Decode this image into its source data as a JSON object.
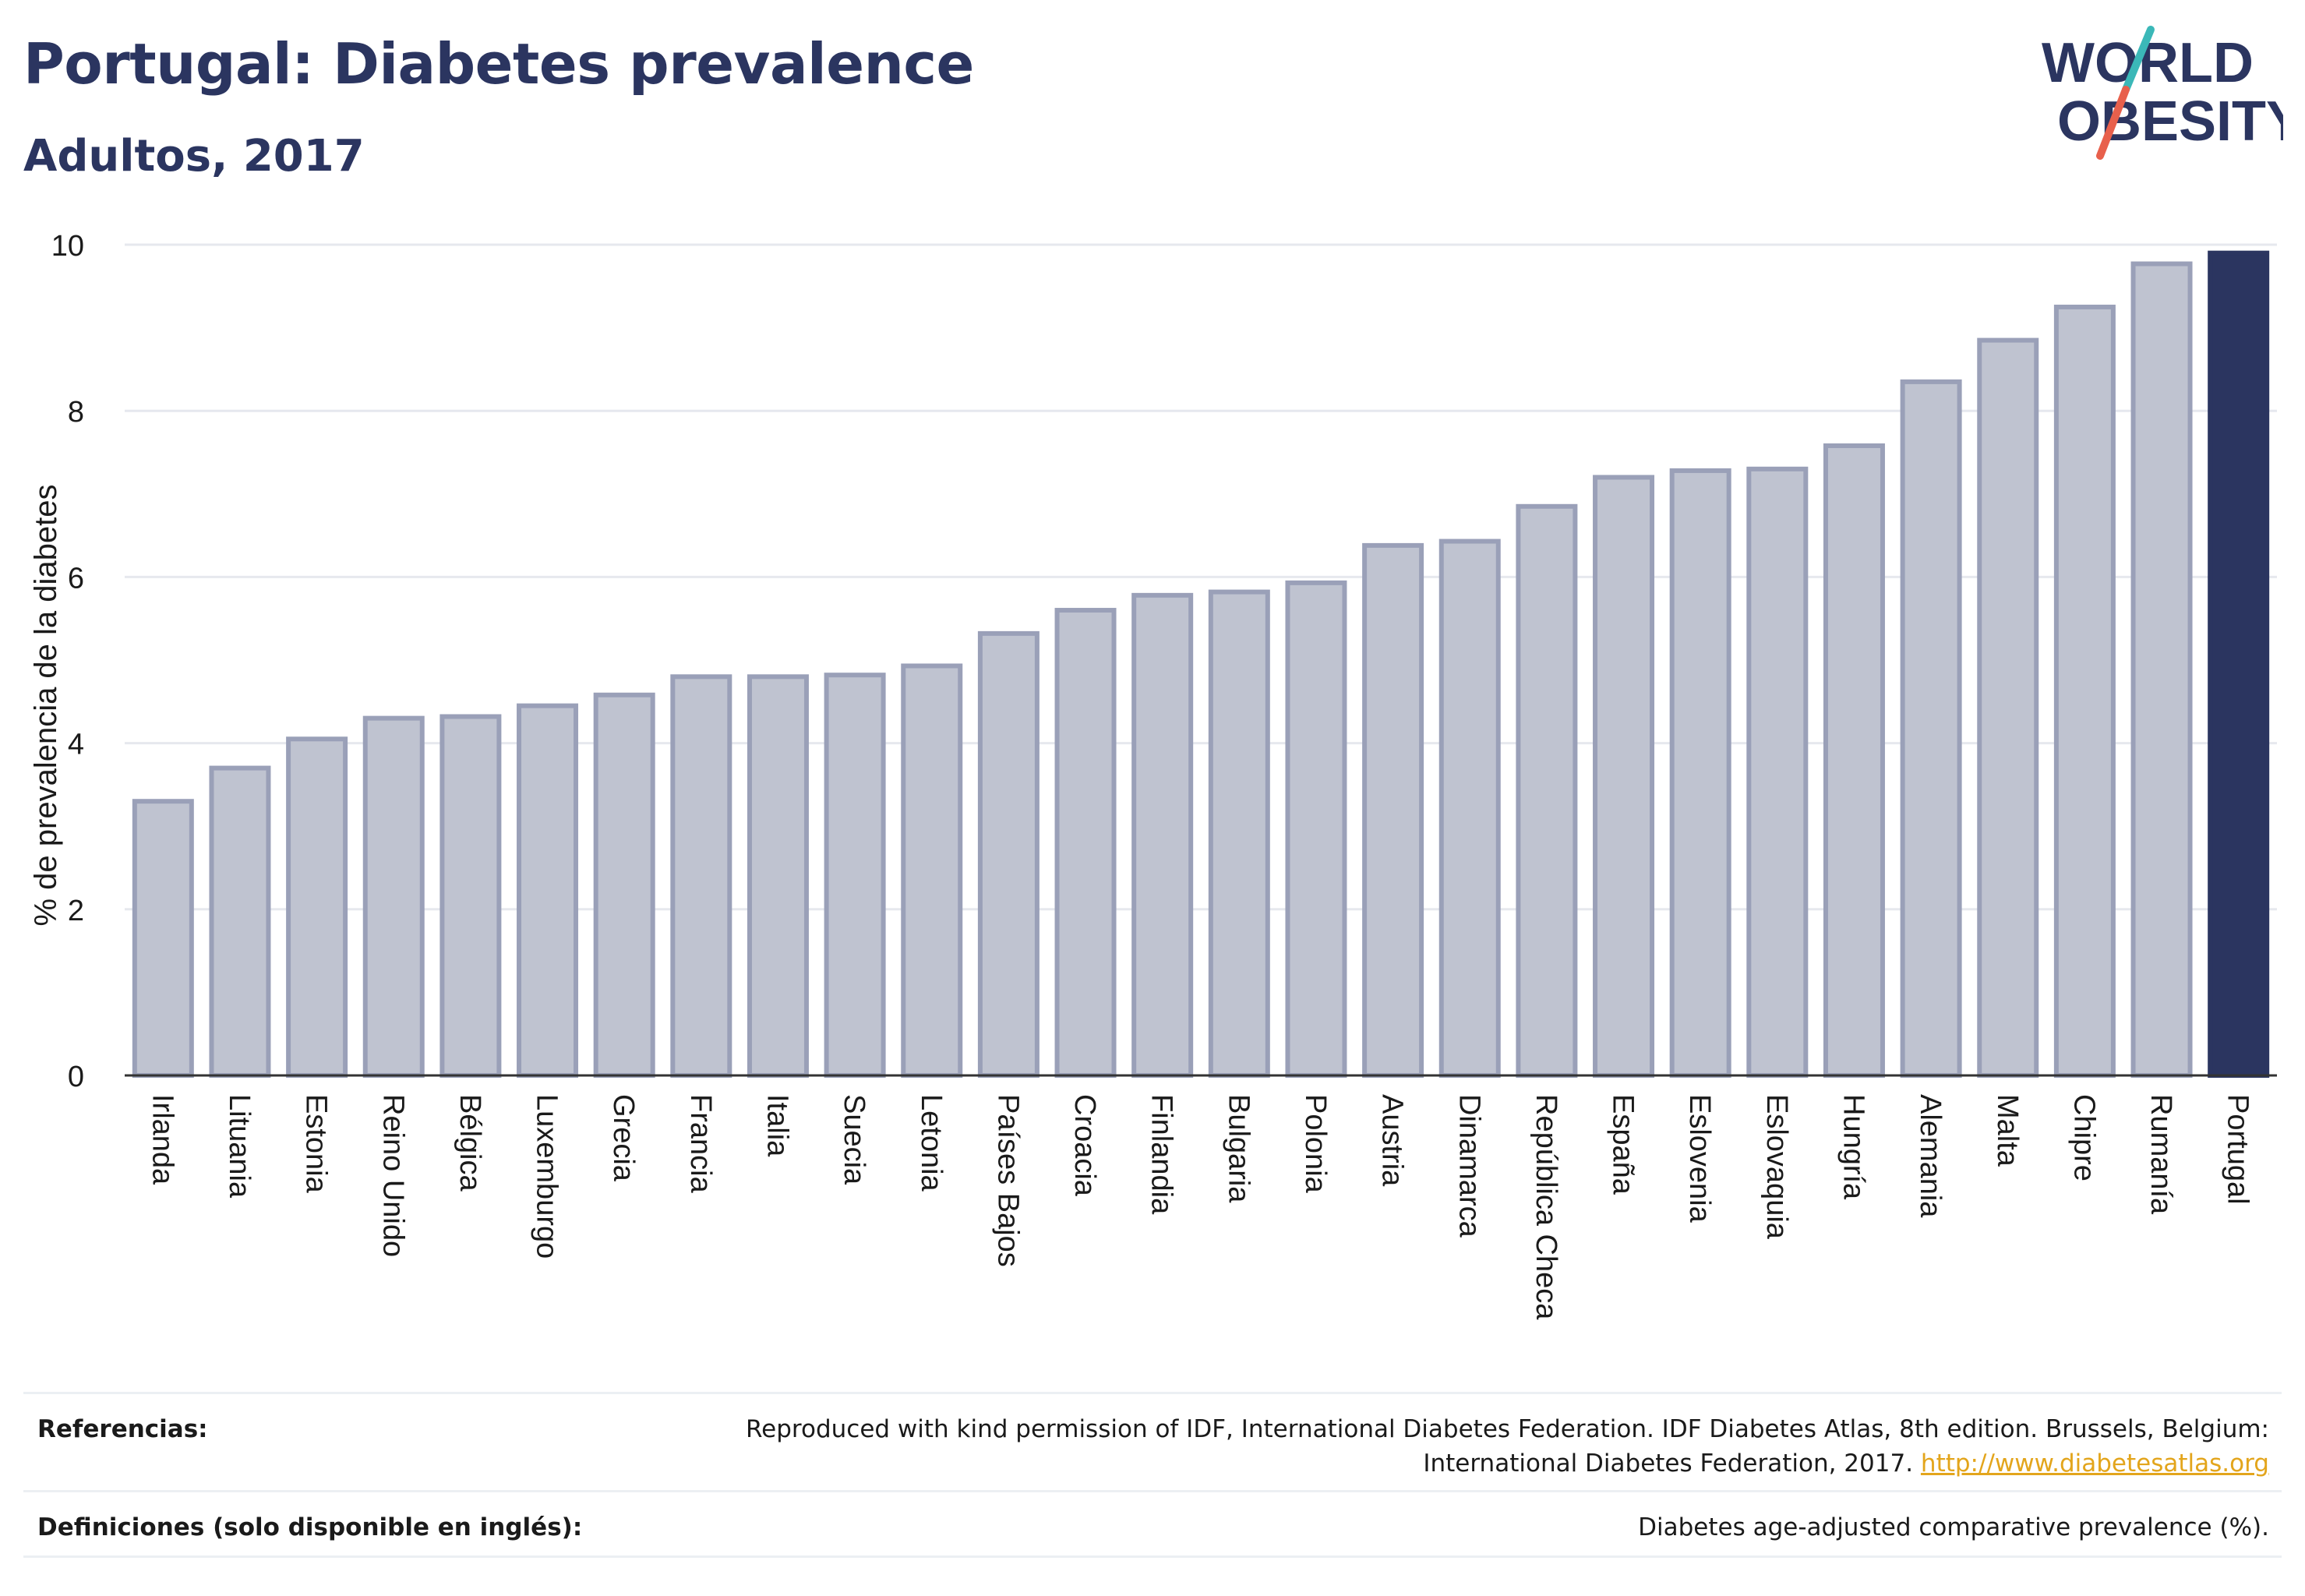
{
  "header": {
    "title": "Portugal: Diabetes prevalence",
    "subtitle": "Adultos, 2017"
  },
  "logo": {
    "line1": "WORLD",
    "line2": "OBESITY",
    "colors": {
      "text": "#2b3560",
      "slash_teal": "#3bb8b8",
      "slash_red": "#e8604c"
    }
  },
  "chart_data": {
    "type": "bar",
    "title": "Portugal: Diabetes prevalence",
    "subtitle": "Adultos, 2017",
    "xlabel": "",
    "ylabel": "% de prevalencia de la diabetes",
    "ylim": [
      0,
      10
    ],
    "yticks": [
      0,
      2,
      4,
      6,
      8,
      10
    ],
    "grid": true,
    "legend": "none",
    "highlight": "Portugal",
    "colors": {
      "bar": "#bfc3d0",
      "bar_border": "#9aa0b8",
      "highlight": "#2b3560",
      "grid": "#e6e8ee"
    },
    "categories": [
      "Irlanda",
      "Lituania",
      "Estonia",
      "Reino Unido",
      "Bélgica",
      "Luxemburgo",
      "Grecia",
      "Francia",
      "Italia",
      "Suecia",
      "Letonia",
      "Países Bajos",
      "Croacia",
      "Finlandia",
      "Bulgaria",
      "Polonia",
      "Austria",
      "Dinamarca",
      "República Checa",
      "España",
      "Eslovenia",
      "Eslovaquia",
      "Hungría",
      "Alemania",
      "Malta",
      "Chipre",
      "Rumanía",
      "Portugal"
    ],
    "values": [
      3.3,
      3.7,
      4.05,
      4.3,
      4.32,
      4.45,
      4.58,
      4.8,
      4.8,
      4.82,
      4.93,
      5.32,
      5.6,
      5.78,
      5.82,
      5.93,
      6.38,
      6.43,
      6.85,
      7.2,
      7.28,
      7.3,
      7.58,
      8.35,
      8.85,
      9.25,
      9.77,
      9.9
    ]
  },
  "footer": {
    "references_label": "Referencias:",
    "references_text_1": "Reproduced with kind permission of IDF, International Diabetes Federation. IDF Diabetes Atlas, 8th edition. Brussels, Belgium:",
    "references_text_2": "International Diabetes Federation, 2017.",
    "references_link": "http://www.diabetesatlas.org",
    "definitions_label": "Definiciones (solo disponible en inglés):",
    "definitions_text": "Diabetes age-adjusted comparative prevalence (%)."
  }
}
